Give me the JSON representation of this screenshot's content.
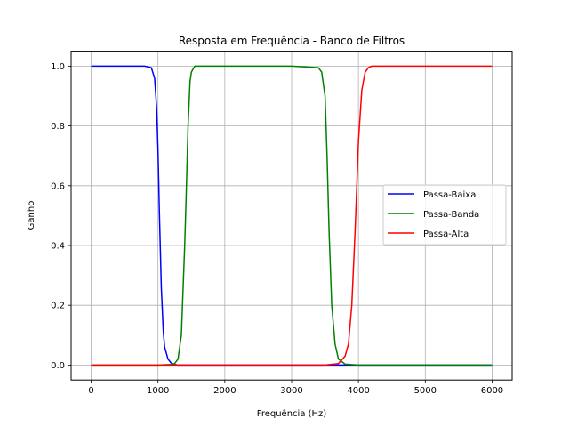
{
  "chart_data": {
    "type": "line",
    "title": "Resposta em Frequência - Banco de Filtros",
    "xlabel": "Frequência (Hz)",
    "ylabel": "Ganho",
    "xlim": [
      -300,
      6300
    ],
    "ylim": [
      -0.05,
      1.05
    ],
    "xticks": [
      0,
      1000,
      2000,
      3000,
      4000,
      5000,
      6000
    ],
    "xtick_labels": [
      "0",
      "1000",
      "2000",
      "3000",
      "4000",
      "5000",
      "6000"
    ],
    "yticks": [
      0.0,
      0.2,
      0.4,
      0.6,
      0.8,
      1.0
    ],
    "ytick_labels": [
      "0.0",
      "0.2",
      "0.4",
      "0.6",
      "0.8",
      "1.0"
    ],
    "grid": true,
    "legend_position": "center-right",
    "series": [
      {
        "name": "Passa-Baixa",
        "color": "#0000ff",
        "x": [
          0,
          500,
          800,
          900,
          950,
          980,
          1000,
          1020,
          1050,
          1080,
          1100,
          1150,
          1200,
          1250,
          1300,
          1400,
          2000,
          3000,
          4000,
          5000,
          6000
        ],
        "y": [
          1.0,
          1.0,
          1.0,
          0.995,
          0.96,
          0.86,
          0.72,
          0.52,
          0.26,
          0.11,
          0.06,
          0.02,
          0.006,
          0.002,
          0.0,
          0.0,
          0.0,
          0.0,
          0.0,
          0.0,
          0.0
        ]
      },
      {
        "name": "Passa-Banda",
        "color": "#008000",
        "x": [
          0,
          1000,
          1200,
          1250,
          1300,
          1350,
          1400,
          1420,
          1450,
          1480,
          1500,
          1550,
          1600,
          3000,
          3400,
          3450,
          3500,
          3530,
          3560,
          3600,
          3650,
          3700,
          3800,
          4000,
          5000,
          6000
        ],
        "y": [
          0.0,
          0.0,
          0.002,
          0.005,
          0.02,
          0.1,
          0.4,
          0.55,
          0.8,
          0.95,
          0.98,
          1.0,
          1.0,
          1.0,
          0.995,
          0.98,
          0.9,
          0.7,
          0.45,
          0.2,
          0.07,
          0.02,
          0.003,
          0.0,
          0.0,
          0.0
        ]
      },
      {
        "name": "Passa-Alta",
        "color": "#ff0000",
        "x": [
          0,
          1000,
          2000,
          3000,
          3500,
          3700,
          3800,
          3850,
          3900,
          3950,
          4000,
          4050,
          4100,
          4150,
          4200,
          4300,
          5000,
          6000
        ],
        "y": [
          0.0,
          0.0,
          0.0,
          0.0,
          0.0,
          0.005,
          0.03,
          0.07,
          0.2,
          0.45,
          0.75,
          0.92,
          0.98,
          0.995,
          1.0,
          1.0,
          1.0,
          1.0
        ]
      }
    ]
  }
}
